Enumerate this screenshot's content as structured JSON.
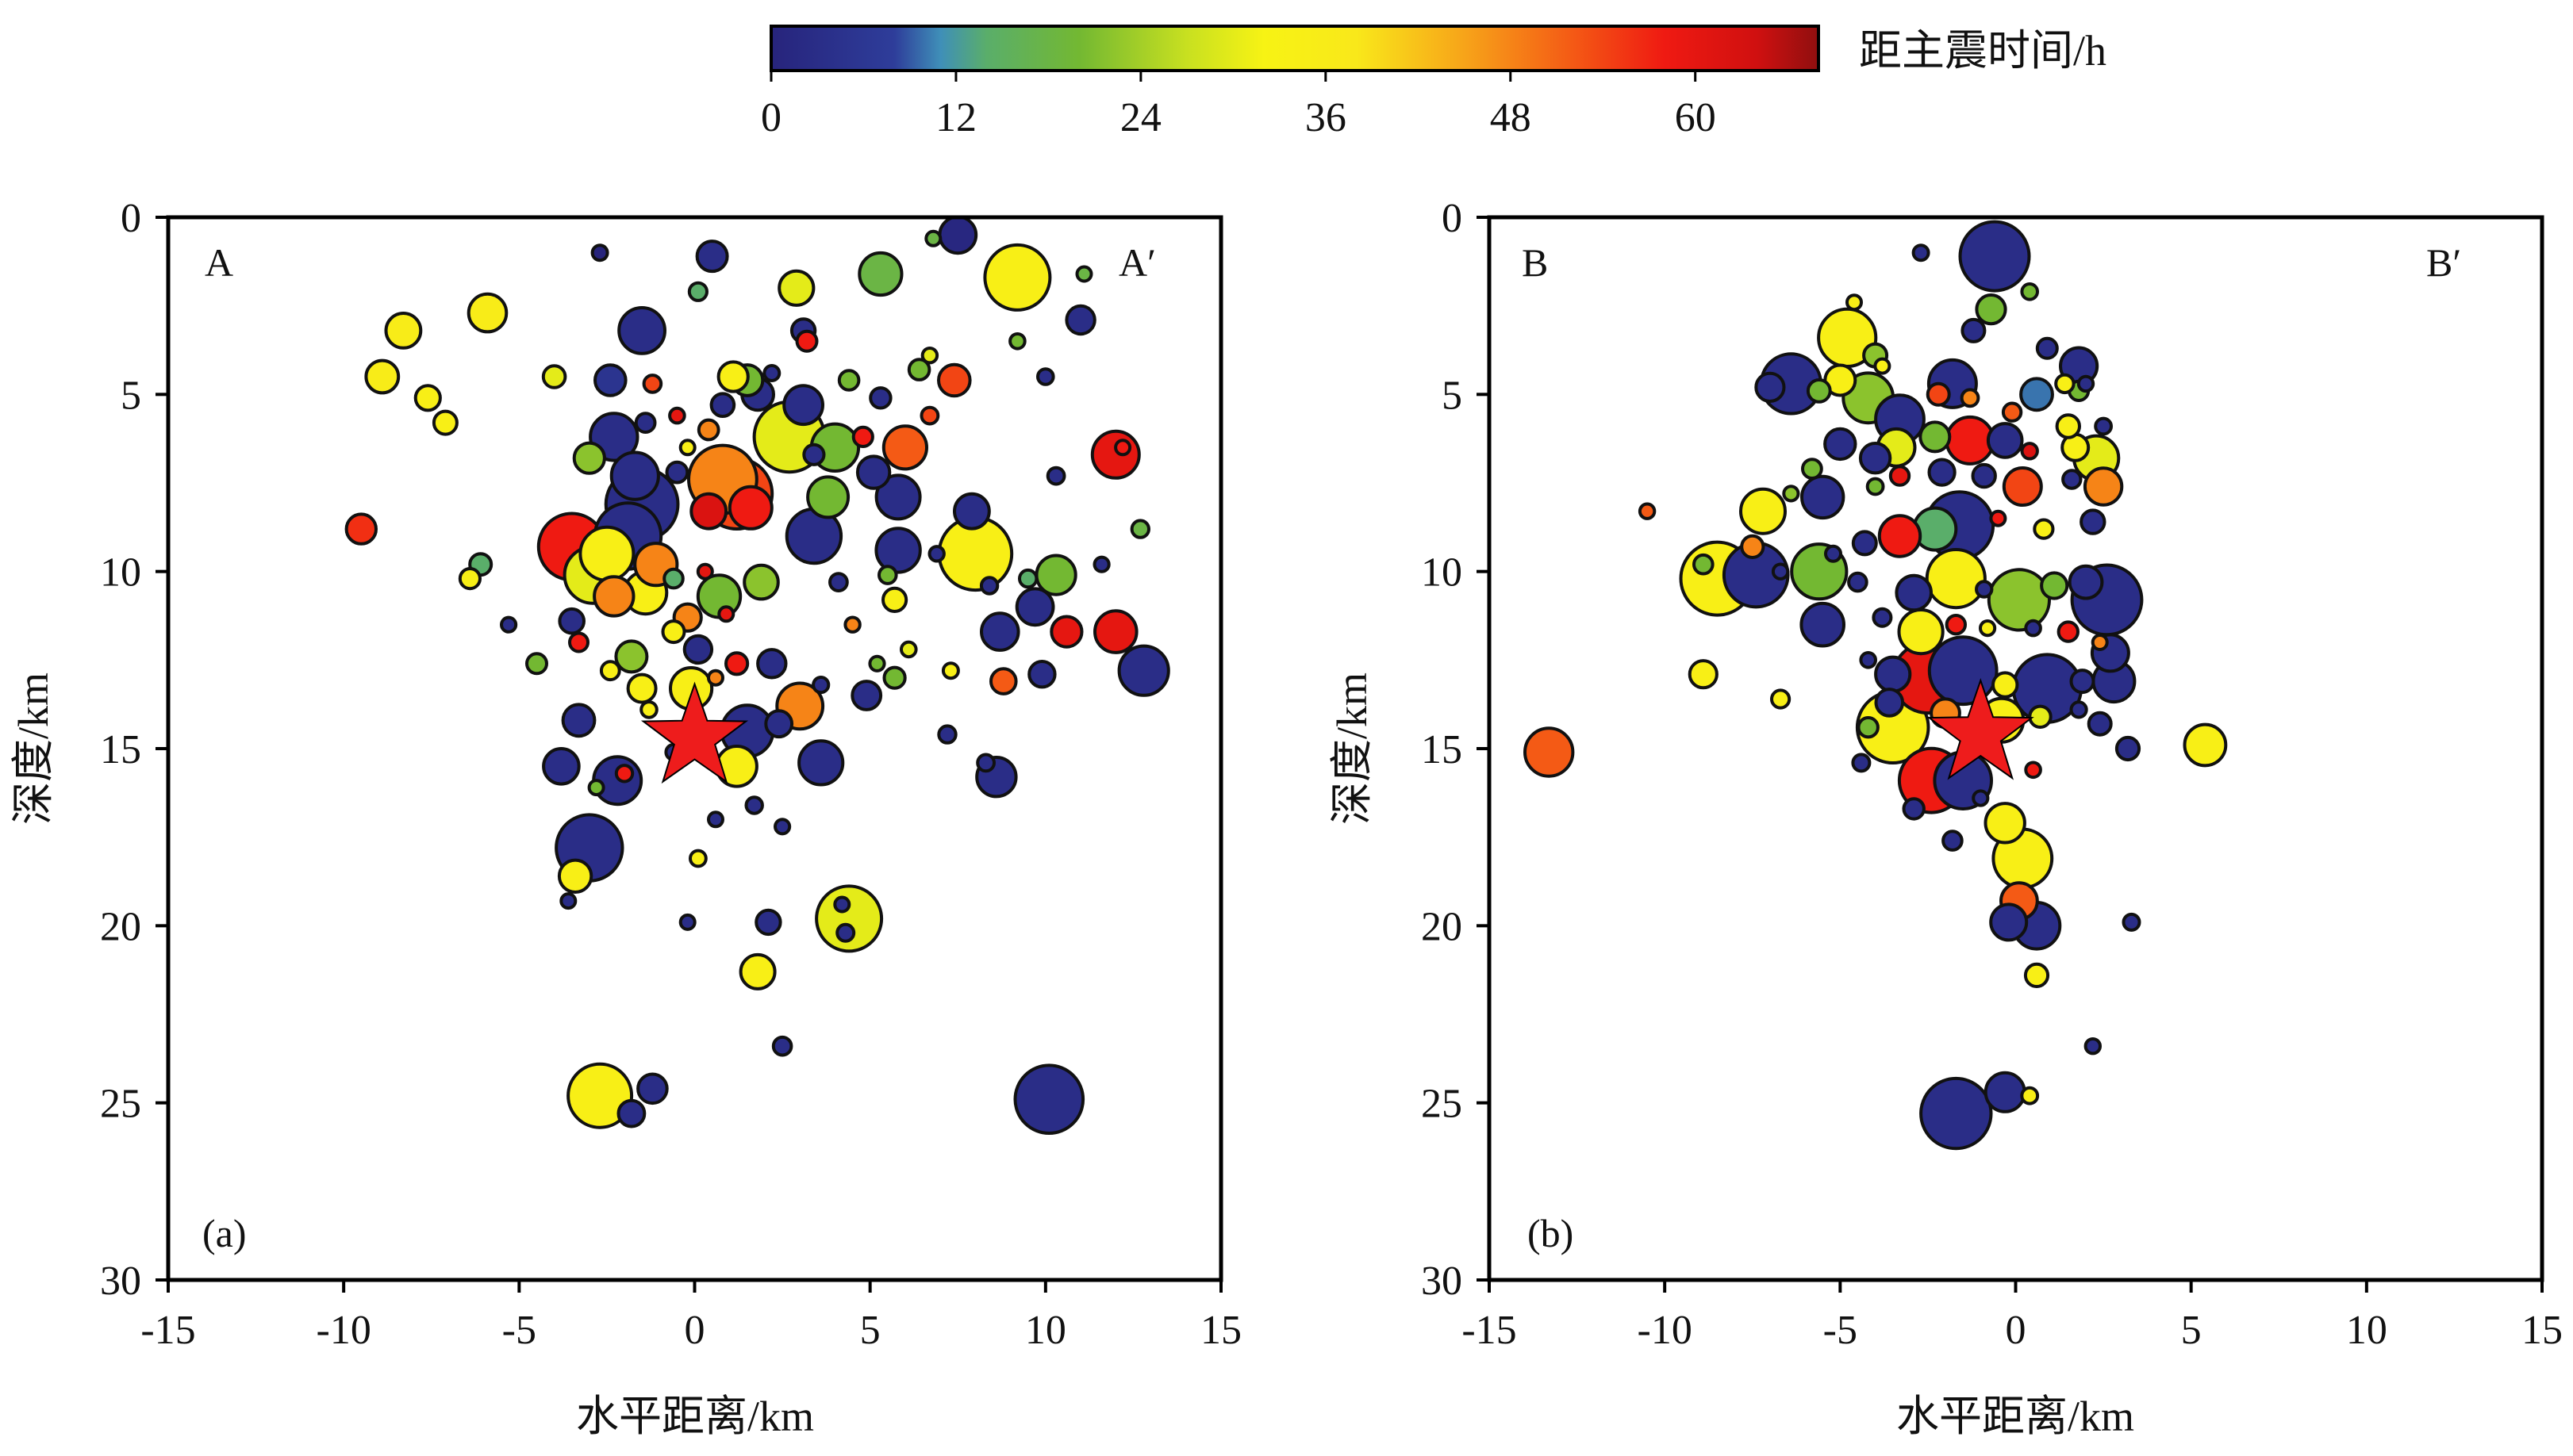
{
  "colorbar": {
    "title": "距主震时间/h",
    "min": 0,
    "max": 68,
    "ticks": [
      "0",
      "12",
      "24",
      "36",
      "48",
      "60"
    ],
    "tick_values": [
      0,
      12,
      24,
      36,
      48,
      60
    ],
    "stops": [
      {
        "v": 0,
        "color": "#27247c"
      },
      {
        "v": 8,
        "color": "#2e3d9a"
      },
      {
        "v": 11,
        "color": "#3f8fb8"
      },
      {
        "v": 14,
        "color": "#5aae6a"
      },
      {
        "v": 20,
        "color": "#73b832"
      },
      {
        "v": 27,
        "color": "#c8e020"
      },
      {
        "v": 32,
        "color": "#f7f314"
      },
      {
        "v": 38,
        "color": "#f9e81a"
      },
      {
        "v": 45,
        "color": "#f7a419"
      },
      {
        "v": 52,
        "color": "#f45a15"
      },
      {
        "v": 58,
        "color": "#ef1a12"
      },
      {
        "v": 64,
        "color": "#d01010"
      },
      {
        "v": 68,
        "color": "#8f0f0f"
      }
    ]
  },
  "chart_data": [
    {
      "type": "scatter",
      "panel": "(a)",
      "left_label": "A",
      "right_label": "A′",
      "xlabel": "水平距离/km",
      "ylabel": "深度/km",
      "xlim": [
        -15,
        15
      ],
      "ylim": [
        0,
        30
      ],
      "y_inverted": true,
      "xticks": [
        "-15",
        "-10",
        "-5",
        "0",
        "5",
        "10",
        "15"
      ],
      "yticks": [
        "0",
        "5",
        "10",
        "15",
        "20",
        "25",
        "30"
      ],
      "mainshock": {
        "x": 0,
        "y": 14.7,
        "symbol": "star",
        "color": "#ee1c1c"
      },
      "events": [
        [
          -2.7,
          1,
          0
        ],
        [
          0.5,
          1.1,
          3
        ],
        [
          7.5,
          0.5,
          1
        ],
        [
          6.8,
          0.6,
          18
        ],
        [
          11.1,
          1.6,
          18
        ],
        [
          11,
          2.9,
          3
        ],
        [
          9.2,
          1.7,
          34
        ],
        [
          -1.5,
          3.2,
          3
        ],
        [
          0.1,
          2.1,
          14
        ],
        [
          3.1,
          3.2,
          3
        ],
        [
          3.2,
          3.5,
          58
        ],
        [
          2.9,
          2,
          30
        ],
        [
          5.3,
          1.6,
          18
        ],
        [
          -5.9,
          2.7,
          36
        ],
        [
          -8.3,
          3.2,
          36
        ],
        [
          -8.9,
          4.5,
          36
        ],
        [
          -7.6,
          5.1,
          34
        ],
        [
          -7.1,
          5.8,
          34
        ],
        [
          -4,
          4.5,
          30
        ],
        [
          -2.4,
          4.6,
          5
        ],
        [
          -1.2,
          4.7,
          54
        ],
        [
          1.5,
          4.6,
          20
        ],
        [
          1.1,
          4.5,
          34
        ],
        [
          2.2,
          4.4,
          3
        ],
        [
          -0.5,
          5.6,
          60
        ],
        [
          0.4,
          6,
          48
        ],
        [
          -0.2,
          6.5,
          34
        ],
        [
          0.8,
          5.3,
          3
        ],
        [
          1.8,
          5,
          3
        ],
        [
          -1.4,
          5.8,
          3
        ],
        [
          -2.3,
          6.2,
          3
        ],
        [
          -3,
          6.8,
          22
        ],
        [
          -1.7,
          7.3,
          3
        ],
        [
          -0.5,
          7.2,
          3
        ],
        [
          0.8,
          7.4,
          48
        ],
        [
          1.2,
          7.8,
          54
        ],
        [
          1.6,
          8.2,
          58
        ],
        [
          0.4,
          8.3,
          62
        ],
        [
          -1.5,
          8.1,
          3
        ],
        [
          -1.9,
          9,
          3
        ],
        [
          -2.5,
          9.5,
          34
        ],
        [
          -1.1,
          9.8,
          48
        ],
        [
          -0.6,
          10.2,
          14
        ],
        [
          0.3,
          10,
          60
        ],
        [
          -2.3,
          10.7,
          48
        ],
        [
          -0.2,
          11.3,
          48
        ],
        [
          0.7,
          10.7,
          20
        ],
        [
          1.9,
          10.3,
          22
        ],
        [
          2.2,
          12.6,
          3
        ],
        [
          0.6,
          13,
          48
        ],
        [
          0.9,
          11.2,
          60
        ],
        [
          -1.8,
          12.4,
          22
        ],
        [
          -2.4,
          12.8,
          34
        ],
        [
          -1.5,
          13.3,
          34
        ],
        [
          -3.3,
          12,
          58
        ],
        [
          -3.5,
          11.4,
          3
        ],
        [
          -4.5,
          12.6,
          20
        ],
        [
          -3.3,
          14.2,
          3
        ],
        [
          -3.8,
          15.5,
          3
        ],
        [
          -2.2,
          15.9,
          3
        ],
        [
          -2,
          15.7,
          58
        ],
        [
          1.5,
          14.5,
          3
        ],
        [
          2.4,
          14.3,
          3
        ],
        [
          3.6,
          15.4,
          3
        ],
        [
          1.7,
          16.6,
          3
        ],
        [
          2.5,
          17.2,
          3
        ],
        [
          -3,
          17.8,
          3
        ],
        [
          -3.6,
          19.3,
          3
        ],
        [
          -3.4,
          18.6,
          34
        ],
        [
          0.1,
          18.1,
          34
        ],
        [
          -0.2,
          19.9,
          3
        ],
        [
          2.1,
          19.9,
          3
        ],
        [
          4.2,
          19.4,
          3
        ],
        [
          4.3,
          20.2,
          3
        ],
        [
          1.8,
          21.3,
          34
        ],
        [
          2.5,
          23.4,
          3
        ],
        [
          -2.7,
          24.8,
          34
        ],
        [
          -1.8,
          25.3,
          3
        ],
        [
          -1.2,
          24.6,
          3
        ],
        [
          10.1,
          24.9,
          3
        ],
        [
          -9.5,
          8.8,
          56
        ],
        [
          12.2,
          6.5,
          58
        ],
        [
          12,
          6.7,
          60
        ],
        [
          12.7,
          8.8,
          18
        ],
        [
          10.6,
          11.7,
          60
        ],
        [
          12,
          11.7,
          60
        ],
        [
          9.9,
          12.9,
          3
        ],
        [
          8.8,
          13.1,
          52
        ],
        [
          7.2,
          14.6,
          3
        ],
        [
          8.6,
          15.8,
          3
        ],
        [
          8.3,
          15.4,
          3
        ],
        [
          6.1,
          12.2,
          30
        ],
        [
          5.2,
          12.6,
          20
        ],
        [
          4.5,
          11.5,
          48
        ],
        [
          5.7,
          10.8,
          34
        ],
        [
          5.5,
          10.1,
          20
        ],
        [
          5.8,
          9.4,
          3
        ],
        [
          6.9,
          9.5,
          3
        ],
        [
          8,
          9.5,
          34
        ],
        [
          8.4,
          10.4,
          3
        ],
        [
          9.5,
          10.2,
          14
        ],
        [
          9.7,
          11,
          3
        ],
        [
          4.1,
          10.3,
          3
        ],
        [
          3.4,
          9,
          3
        ],
        [
          3.8,
          7.9,
          20
        ],
        [
          3.4,
          6.7,
          3
        ],
        [
          4,
          6.5,
          20
        ],
        [
          5.1,
          7.2,
          3
        ],
        [
          5.8,
          7.9,
          3
        ],
        [
          6,
          6.5,
          52
        ],
        [
          6.7,
          5.6,
          54
        ],
        [
          6.4,
          4.3,
          20
        ],
        [
          7.4,
          4.6,
          54
        ],
        [
          6.7,
          3.9,
          30
        ],
        [
          9.2,
          3.5,
          20
        ],
        [
          10,
          4.5,
          3
        ],
        [
          7.9,
          8.3,
          3
        ],
        [
          4.4,
          4.6,
          20
        ],
        [
          5.3,
          5.1,
          3
        ],
        [
          4.8,
          6.2,
          58
        ],
        [
          3.1,
          5.3,
          3
        ],
        [
          2.7,
          6.2,
          30
        ],
        [
          -3.5,
          9.3,
          58
        ],
        [
          -2.9,
          10.1,
          30
        ],
        [
          -1.4,
          10.6,
          34
        ],
        [
          -0.6,
          11.7,
          34
        ],
        [
          0.1,
          12.2,
          3
        ],
        [
          1.2,
          12.6,
          58
        ],
        [
          -0.1,
          13.3,
          34
        ],
        [
          -1.3,
          13.9,
          34
        ],
        [
          -0.6,
          15.1,
          3
        ],
        [
          1.2,
          15.5,
          34
        ],
        [
          0.6,
          17,
          3
        ],
        [
          4.4,
          19.8,
          30
        ],
        [
          -2.8,
          16.1,
          20
        ],
        [
          3,
          13.8,
          48
        ],
        [
          3.6,
          13.2,
          3
        ],
        [
          4.9,
          13.5,
          3
        ],
        [
          5.7,
          13,
          20
        ],
        [
          7.3,
          12.8,
          34
        ],
        [
          8.7,
          11.7,
          3
        ],
        [
          10.3,
          10.1,
          20
        ],
        [
          10.3,
          7.3,
          3
        ],
        [
          11.6,
          9.8,
          3
        ],
        [
          12.8,
          12.8,
          3
        ],
        [
          -5.3,
          11.5,
          3
        ],
        [
          -6.4,
          10.2,
          34
        ],
        [
          -6.1,
          9.8,
          14
        ]
      ]
    },
    {
      "type": "scatter",
      "panel": "(b)",
      "left_label": "B",
      "right_label": "B′",
      "xlabel": "水平距离/km",
      "ylabel": "深度/km",
      "xlim": [
        -15,
        15
      ],
      "ylim": [
        0,
        30
      ],
      "y_inverted": true,
      "xticks": [
        "-15",
        "-10",
        "-5",
        "0",
        "5",
        "10",
        "15"
      ],
      "yticks": [
        "0",
        "5",
        "10",
        "15",
        "20",
        "25",
        "30"
      ],
      "mainshock": {
        "x": -1.0,
        "y": 14.6,
        "symbol": "star",
        "color": "#ee1c1c"
      },
      "events": [
        [
          -2.7,
          1,
          3
        ],
        [
          -0.6,
          1.1,
          3
        ],
        [
          -0.7,
          2.6,
          20
        ],
        [
          -1.2,
          3.2,
          3
        ],
        [
          0.4,
          2.1,
          20
        ],
        [
          -4.6,
          2.4,
          34
        ],
        [
          -4.8,
          3.4,
          34
        ],
        [
          -4,
          3.9,
          22
        ],
        [
          -3.8,
          4.2,
          34
        ],
        [
          -7,
          4.8,
          3
        ],
        [
          -6.4,
          4.7,
          3
        ],
        [
          -5.6,
          4.9,
          20
        ],
        [
          -5,
          4.6,
          34
        ],
        [
          -4.2,
          5.1,
          22
        ],
        [
          -2.2,
          5,
          54
        ],
        [
          -1.3,
          5.1,
          48
        ],
        [
          -0.1,
          5.5,
          52
        ],
        [
          0.6,
          5,
          10
        ],
        [
          1.4,
          4.7,
          34
        ],
        [
          2,
          4.7,
          3
        ],
        [
          1.8,
          4.2,
          3
        ],
        [
          -5,
          6.4,
          3
        ],
        [
          -4,
          6.8,
          3
        ],
        [
          -3.4,
          6.5,
          30
        ],
        [
          -2.3,
          6.2,
          20
        ],
        [
          -1.3,
          6.3,
          58
        ],
        [
          -0.3,
          6.3,
          3
        ],
        [
          0.4,
          6.6,
          62
        ],
        [
          1.7,
          6.5,
          34
        ],
        [
          2.3,
          6.8,
          30
        ],
        [
          2.5,
          7.6,
          48
        ],
        [
          1.6,
          7.4,
          3
        ],
        [
          0.2,
          7.6,
          54
        ],
        [
          -0.9,
          7.3,
          3
        ],
        [
          -2.1,
          7.2,
          3
        ],
        [
          -3.3,
          7.3,
          60
        ],
        [
          -4,
          7.6,
          20
        ],
        [
          -5.5,
          7.9,
          3
        ],
        [
          -6.4,
          7.8,
          22
        ],
        [
          -7.2,
          8.3,
          34
        ],
        [
          -10.5,
          8.3,
          52
        ],
        [
          -7.5,
          9.3,
          48
        ],
        [
          -6.7,
          10,
          3
        ],
        [
          -5.2,
          9.5,
          3
        ],
        [
          -4.3,
          9.2,
          3
        ],
        [
          -3.3,
          9,
          58
        ],
        [
          -2.3,
          8.8,
          14
        ],
        [
          -1.6,
          8.7,
          3
        ],
        [
          -0.5,
          8.5,
          58
        ],
        [
          0.8,
          8.8,
          34
        ],
        [
          2.2,
          8.6,
          3
        ],
        [
          -8.9,
          9.8,
          20
        ],
        [
          -7.4,
          10.1,
          3
        ],
        [
          -5.6,
          10,
          20
        ],
        [
          -4.5,
          10.3,
          3
        ],
        [
          -2.9,
          10.6,
          3
        ],
        [
          -1.7,
          10.2,
          34
        ],
        [
          -0.9,
          10.5,
          3
        ],
        [
          0.1,
          10.8,
          22
        ],
        [
          1.1,
          10.4,
          20
        ],
        [
          2,
          10.3,
          3
        ],
        [
          2.6,
          10.8,
          3
        ],
        [
          -5.5,
          11.5,
          3
        ],
        [
          -3.8,
          11.3,
          3
        ],
        [
          -2.7,
          11.7,
          34
        ],
        [
          -1.7,
          11.5,
          58
        ],
        [
          -0.8,
          11.6,
          34
        ],
        [
          0.5,
          11.6,
          3
        ],
        [
          1.5,
          11.7,
          58
        ],
        [
          2.4,
          12,
          48
        ],
        [
          2.7,
          12.3,
          3
        ],
        [
          -4.2,
          12.5,
          3
        ],
        [
          -3.5,
          12.9,
          3
        ],
        [
          -2.5,
          13,
          60
        ],
        [
          -1.5,
          12.8,
          3
        ],
        [
          -0.3,
          13.2,
          34
        ],
        [
          0.9,
          13.3,
          3
        ],
        [
          1.9,
          13.1,
          3
        ],
        [
          2.8,
          13.1,
          3
        ],
        [
          -8.9,
          12.9,
          34
        ],
        [
          -6.7,
          13.6,
          34
        ],
        [
          -4.2,
          14.4,
          20
        ],
        [
          -3.6,
          13.7,
          3
        ],
        [
          -2,
          14,
          48
        ],
        [
          -0.4,
          14.2,
          34
        ],
        [
          0.7,
          14.1,
          30
        ],
        [
          1.8,
          13.9,
          3
        ],
        [
          -13.3,
          15.1,
          52
        ],
        [
          5.4,
          14.9,
          34
        ],
        [
          3.2,
          15,
          3
        ],
        [
          -4.4,
          15.4,
          3
        ],
        [
          -2.4,
          15.9,
          58
        ],
        [
          -1.5,
          15.9,
          3
        ],
        [
          -1,
          16.4,
          3
        ],
        [
          -1.8,
          17.6,
          3
        ],
        [
          -0.3,
          17.1,
          34
        ],
        [
          0.2,
          18.1,
          34
        ],
        [
          0.1,
          19.3,
          52
        ],
        [
          -0.2,
          19.9,
          3
        ],
        [
          0.6,
          20,
          3
        ],
        [
          3.3,
          19.9,
          3
        ],
        [
          0.6,
          21.4,
          34
        ],
        [
          2.2,
          23.4,
          3
        ],
        [
          -0.3,
          24.7,
          3
        ],
        [
          0.4,
          24.8,
          34
        ],
        [
          -1.7,
          25.3,
          3
        ],
        [
          1.5,
          5.9,
          34
        ],
        [
          1.8,
          4.9,
          20
        ],
        [
          2.5,
          5.9,
          3
        ],
        [
          0.9,
          3.7,
          3
        ],
        [
          -1.8,
          4.7,
          3
        ],
        [
          -3.3,
          5.7,
          3
        ],
        [
          -5.8,
          7.1,
          20
        ],
        [
          -8.5,
          10.2,
          34
        ],
        [
          -2.9,
          16.7,
          3
        ],
        [
          0.5,
          15.6,
          58
        ],
        [
          2.4,
          14.3,
          3
        ],
        [
          -3.5,
          14.4,
          34
        ]
      ],
      "event_format": "[x_km, depth_km, hours_since_mainshock]"
    }
  ]
}
